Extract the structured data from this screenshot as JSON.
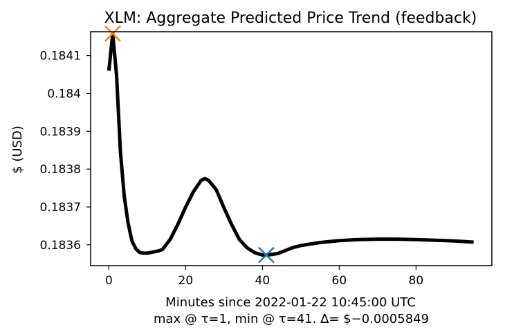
{
  "chart_data": {
    "type": "line",
    "title": "XLM: Aggregate Predicted Price Trend (feedback)",
    "xlabel": "Minutes since 2022-01-22 10:45:00 UTC",
    "xlabel2": "max @ τ=1, min @ τ=41. Δ= $−0.0005849",
    "ylabel": "$ (USD)",
    "xlim": [
      -4.75,
      99.75
    ],
    "ylim": [
      0.183545,
      0.184163
    ],
    "xticks": [
      0,
      20,
      40,
      60,
      80
    ],
    "xtick_labels": [
      "0",
      "20",
      "40",
      "60",
      "80"
    ],
    "yticks": [
      0.1836,
      0.1837,
      0.1838,
      0.1839,
      0.184,
      0.1841
    ],
    "ytick_labels": [
      "0.1836",
      "0.1837",
      "0.1838",
      "0.1839",
      "0.184",
      "0.1841"
    ],
    "grid": false,
    "series": [
      {
        "color": "#000000",
        "x": [
          0,
          1,
          2,
          3,
          4,
          5,
          6,
          7,
          8,
          9,
          10,
          11,
          12,
          13,
          14,
          16,
          18,
          20,
          22,
          24,
          25,
          26,
          28,
          30,
          32,
          34,
          36,
          38,
          40,
          41,
          42,
          44,
          46,
          48,
          50,
          55,
          60,
          65,
          70,
          75,
          80,
          85,
          90,
          95
        ],
        "y": [
          0.18406,
          0.184158,
          0.184048,
          0.183848,
          0.183728,
          0.183658,
          0.18361,
          0.18359,
          0.18358,
          0.183578,
          0.183578,
          0.18358,
          0.183582,
          0.183584,
          0.183588,
          0.183615,
          0.183655,
          0.1837,
          0.18374,
          0.18377,
          0.183775,
          0.18377,
          0.183745,
          0.183697,
          0.183653,
          0.183614,
          0.183592,
          0.183579,
          0.183573,
          0.183573,
          0.183574,
          0.183577,
          0.183585,
          0.183593,
          0.183598,
          0.183606,
          0.183611,
          0.183614,
          0.183615,
          0.183615,
          0.183614,
          0.183612,
          0.18361,
          0.183607
        ]
      }
    ],
    "markers": [
      {
        "label": "max",
        "x": 1,
        "y": 0.184158,
        "symbol": "x",
        "color": "#ff7f0e"
      },
      {
        "label": "min",
        "x": 41,
        "y": 0.183573,
        "symbol": "x",
        "color": "#1f77b4"
      }
    ]
  }
}
